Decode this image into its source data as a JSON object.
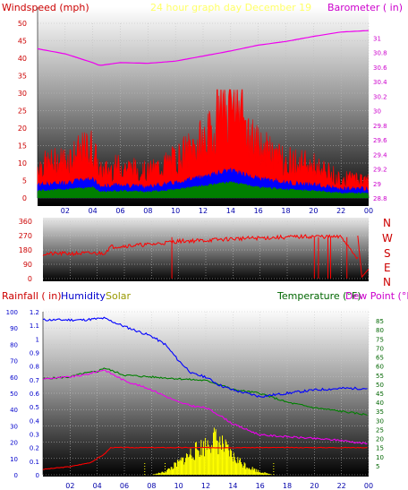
{
  "header": {
    "left": "Windspeed (mph)",
    "center": "24 hour graph day  December 19",
    "right": "Barometer ( in)"
  },
  "panel2_dir_labels": [
    "N",
    "W",
    "S",
    "E",
    "N"
  ],
  "panel3_headers": {
    "rain": "Rainfall ( in)",
    "humidity": "Humidity",
    "solar": "Solar",
    "temp": "Temperature (°F)",
    "dew": "Dew Point (°F)"
  },
  "colors": {
    "wind_gust": "#ff0000",
    "wind_speed": "#0000ff",
    "wind_avg": "#008000",
    "barometer": "#ee00ee",
    "direction": "#ff0000",
    "rain": "#ff0000",
    "humidity": "#0000ff",
    "solar": "#ffff00",
    "temperature": "#008000",
    "dew_point": "#ee00ee",
    "title_center": "#ffff66"
  },
  "chart_data": [
    {
      "type": "line",
      "x_ticks": [
        "02",
        "04",
        "06",
        "08",
        "10",
        "12",
        "14",
        "16",
        "18",
        "20",
        "22",
        "00"
      ],
      "y_left_ticks": [
        0,
        5,
        10,
        15,
        20,
        25,
        30,
        35,
        40,
        45,
        50
      ],
      "y_right_ticks": [
        28.8,
        29,
        29.2,
        29.4,
        29.6,
        29.8,
        30,
        30.2,
        30.4,
        30.6,
        30.8,
        31
      ],
      "ylim_left": [
        0,
        50
      ],
      "ylim_right": [
        28.8,
        31.2
      ],
      "series": [
        {
          "name": "Windspeed (mph)",
          "x": [
            0,
            2,
            4,
            4.5,
            6,
            8,
            10,
            12,
            14,
            16,
            18,
            20,
            22,
            24
          ],
          "values": [
            5,
            6,
            8,
            4,
            5,
            4,
            6,
            9,
            12,
            8,
            6,
            5,
            3,
            3
          ]
        },
        {
          "name": "Barometer ( in)",
          "axis": "right",
          "x": [
            0,
            2,
            3,
            4,
            4.5,
            6,
            8,
            10,
            12,
            14,
            16,
            18,
            20,
            22,
            24
          ],
          "values": [
            30.85,
            30.78,
            30.72,
            30.66,
            30.62,
            30.66,
            30.65,
            30.68,
            30.75,
            30.82,
            30.9,
            30.95,
            31.02,
            31.08,
            31.1
          ]
        }
      ]
    },
    {
      "type": "line",
      "x_ticks": [
        "02",
        "04",
        "06",
        "08",
        "10",
        "12",
        "14",
        "16",
        "18",
        "20",
        "22",
        "00"
      ],
      "y_ticks": [
        0,
        90,
        180,
        270,
        360
      ],
      "ylim": [
        0,
        360
      ],
      "series": [
        {
          "x": [
            0,
            4.5,
            5,
            8,
            10,
            12,
            14,
            16,
            18,
            20,
            22,
            24
          ],
          "values": [
            155,
            160,
            200,
            215,
            235,
            240,
            250,
            255,
            260,
            265,
            260,
            40
          ]
        }
      ]
    },
    {
      "type": "line",
      "x_ticks": [
        "02",
        "04",
        "06",
        "08",
        "10",
        "12",
        "14",
        "16",
        "18",
        "20",
        "22",
        "00"
      ],
      "y_rain_ticks": [
        0,
        0.1,
        0.2,
        0.3,
        0.4,
        0.5,
        0.6,
        0.7,
        0.8,
        0.9,
        1,
        1.1,
        1.2
      ],
      "y_humidity_ticks": [
        0,
        10,
        20,
        30,
        40,
        50,
        60,
        70,
        80,
        90,
        100
      ],
      "y_temp_ticks": [
        5,
        10,
        15,
        20,
        25,
        30,
        35,
        40,
        45,
        50,
        55,
        60,
        65,
        70,
        75,
        80,
        85
      ],
      "ylim_rain": [
        0,
        1.2
      ],
      "ylim_humidity": [
        0,
        100
      ],
      "ylim_temp": [
        0,
        90
      ],
      "series": [
        {
          "name": "Rainfall ( in)",
          "axis": "rain",
          "x": [
            0,
            2,
            3.5,
            4.5,
            5,
            24
          ],
          "values": [
            0.04,
            0.06,
            0.09,
            0.15,
            0.2,
            0.2
          ]
        },
        {
          "name": "Humidity",
          "axis": "humidity",
          "x": [
            0,
            3,
            4.5,
            6,
            7,
            8,
            9,
            10,
            11,
            12,
            13,
            14,
            15,
            16,
            18,
            20,
            22,
            24
          ],
          "values": [
            95,
            95,
            96,
            91,
            88,
            85,
            80,
            70,
            62,
            60,
            55,
            52,
            50,
            48,
            50,
            52,
            53,
            53
          ]
        },
        {
          "name": "Solar",
          "axis": "humidity",
          "x": [
            0,
            8,
            9,
            10,
            11,
            12,
            12.5,
            13,
            14,
            15,
            16,
            17,
            24
          ],
          "values": [
            0,
            0,
            2,
            8,
            15,
            20,
            25,
            22,
            12,
            6,
            2,
            0,
            0
          ]
        },
        {
          "name": "Temperature (°F)",
          "axis": "temp",
          "x": [
            0,
            2,
            3,
            4,
            4.5,
            6,
            8,
            10,
            12,
            13,
            14,
            16,
            18,
            20,
            22,
            24
          ],
          "values": [
            53,
            54,
            56,
            57,
            59,
            55,
            54,
            53,
            52,
            50,
            47,
            45,
            40,
            37,
            35,
            33
          ]
        },
        {
          "name": "Dew Point (°F)",
          "axis": "temp",
          "x": [
            0,
            2,
            3,
            4,
            4.5,
            6,
            8,
            10,
            11,
            12,
            13,
            14,
            15,
            16,
            18,
            20,
            22,
            24
          ],
          "values": [
            53,
            54,
            55,
            57,
            58,
            52,
            47,
            40,
            38,
            37,
            33,
            28,
            25,
            22,
            21,
            20,
            19,
            17
          ]
        }
      ]
    }
  ]
}
